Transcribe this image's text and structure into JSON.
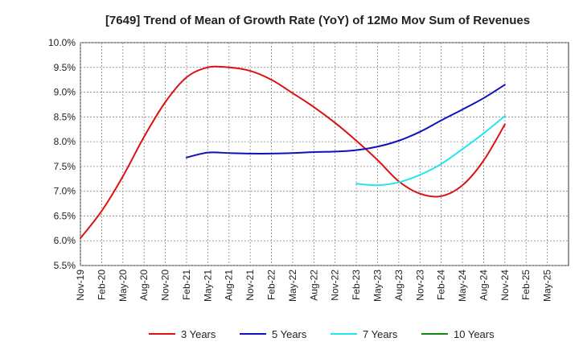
{
  "chart_data": {
    "type": "line",
    "title": "[7649]  Trend of Mean of Growth Rate (YoY) of 12Mo Mov Sum of Revenues",
    "xlabel": "",
    "ylabel": "",
    "ylim": [
      5.5,
      10.0
    ],
    "y_ticks": [
      "10.0%",
      "9.5%",
      "9.0%",
      "8.5%",
      "8.0%",
      "7.5%",
      "7.0%",
      "6.5%",
      "6.0%",
      "5.5%"
    ],
    "y_tick_values": [
      10.0,
      9.5,
      9.0,
      8.5,
      8.0,
      7.5,
      7.0,
      6.5,
      6.0,
      5.5
    ],
    "x_ticks": [
      "Nov-19",
      "Feb-20",
      "May-20",
      "Aug-20",
      "Nov-20",
      "Feb-21",
      "May-21",
      "Aug-21",
      "Nov-21",
      "Feb-22",
      "May-22",
      "Aug-22",
      "Nov-22",
      "Feb-23",
      "May-23",
      "Aug-23",
      "Nov-23",
      "Feb-24",
      "May-24",
      "Aug-24",
      "Nov-24",
      "Feb-25",
      "May-25"
    ],
    "grid": true,
    "legend_position": "bottom",
    "series": [
      {
        "name": "3 Years",
        "color": "#dd1111",
        "points": [
          [
            0,
            6.05
          ],
          [
            1,
            6.6
          ],
          [
            2,
            7.3
          ],
          [
            3,
            8.1
          ],
          [
            4,
            8.8
          ],
          [
            5,
            9.3
          ],
          [
            6,
            9.5
          ],
          [
            7,
            9.5
          ],
          [
            8,
            9.43
          ],
          [
            9,
            9.25
          ],
          [
            10,
            8.98
          ],
          [
            11,
            8.7
          ],
          [
            12,
            8.38
          ],
          [
            13,
            8.02
          ],
          [
            14,
            7.63
          ],
          [
            15,
            7.2
          ],
          [
            16,
            6.95
          ],
          [
            17,
            6.9
          ],
          [
            18,
            7.12
          ],
          [
            19,
            7.62
          ],
          [
            20,
            8.35
          ]
        ]
      },
      {
        "name": "5 Years",
        "color": "#1111bb",
        "points": [
          [
            5,
            7.68
          ],
          [
            6,
            7.78
          ],
          [
            7,
            7.77
          ],
          [
            8,
            7.76
          ],
          [
            9,
            7.76
          ],
          [
            10,
            7.77
          ],
          [
            11,
            7.79
          ],
          [
            12,
            7.8
          ],
          [
            13,
            7.83
          ],
          [
            14,
            7.9
          ],
          [
            15,
            8.02
          ],
          [
            16,
            8.2
          ],
          [
            17,
            8.43
          ],
          [
            18,
            8.65
          ],
          [
            19,
            8.88
          ],
          [
            20,
            9.15
          ]
        ]
      },
      {
        "name": "7 Years",
        "color": "#22e5ee",
        "points": [
          [
            13,
            7.15
          ],
          [
            14,
            7.12
          ],
          [
            15,
            7.18
          ],
          [
            16,
            7.33
          ],
          [
            17,
            7.55
          ],
          [
            18,
            7.85
          ],
          [
            19,
            8.17
          ],
          [
            20,
            8.52
          ]
        ]
      },
      {
        "name": "10 Years",
        "color": "#118811",
        "points": []
      }
    ]
  }
}
